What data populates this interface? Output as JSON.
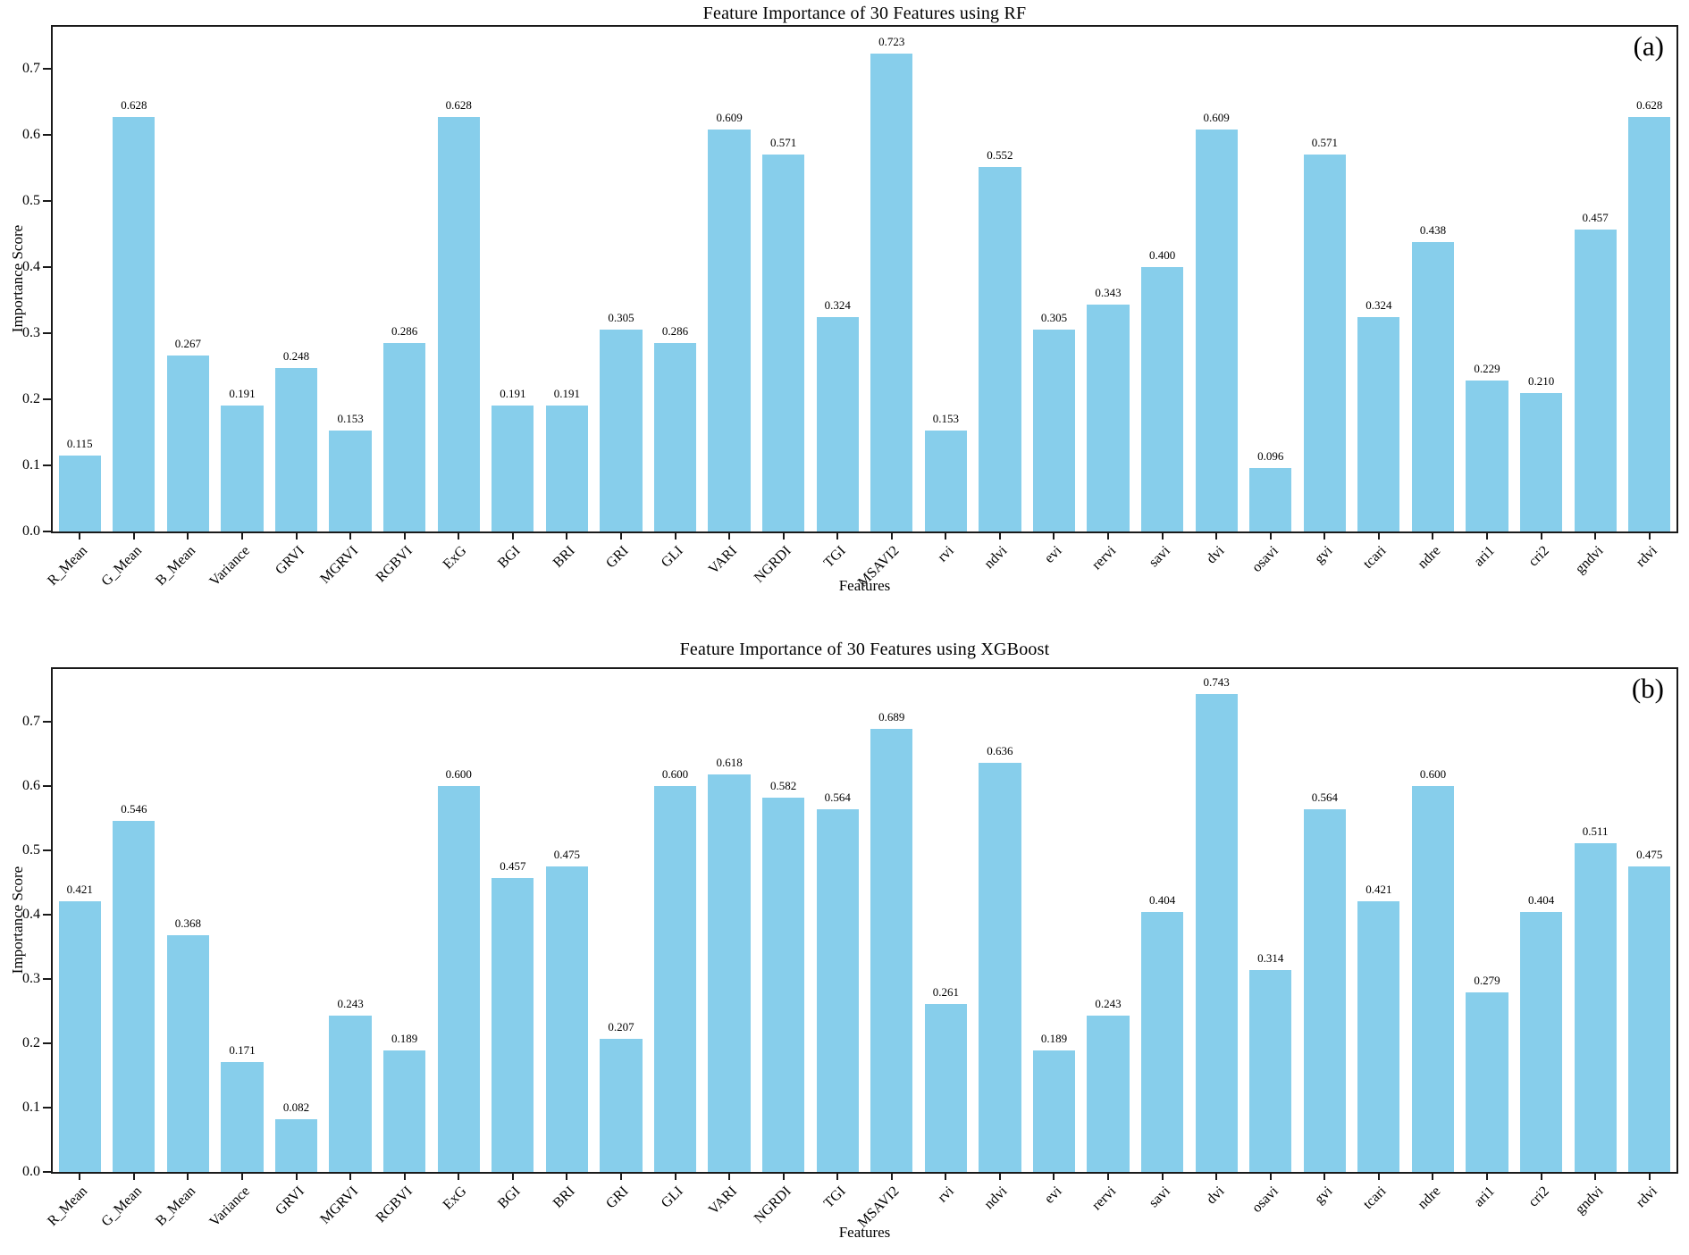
{
  "figure": {
    "background": "#ffffff",
    "text_color": "#000000"
  },
  "chart_data": [
    {
      "type": "bar",
      "panel_label": "(a)",
      "title": "Feature Importance of 30 Features using RF",
      "xlabel": "Features",
      "ylabel": "Importance Score",
      "bar_color": "#87CEEB",
      "ylim": [
        0,
        0.764
      ],
      "yticks": [
        "0.0",
        "0.1",
        "0.2",
        "0.3",
        "0.4",
        "0.5",
        "0.6",
        "0.7"
      ],
      "grid": false,
      "legend": "none",
      "value_labels_shown": true,
      "categories": [
        "R_Mean",
        "G_Mean",
        "B_Mean",
        "Variance",
        "GRVI",
        "MGRVI",
        "RGBVI",
        "ExG",
        "BGI",
        "BRI",
        "GRI",
        "GLI",
        "VARI",
        "NGRDI",
        "TGI",
        "MSAVI2",
        "rvi",
        "ndvi",
        "evi",
        "rervi",
        "savi",
        "dvi",
        "osavi",
        "gvi",
        "tcari",
        "ndre",
        "ari1",
        "cri2",
        "gndvi",
        "rdvi"
      ],
      "values": [
        0.115,
        0.628,
        0.267,
        0.191,
        0.248,
        0.153,
        0.286,
        0.628,
        0.191,
        0.191,
        0.305,
        0.286,
        0.609,
        0.571,
        0.324,
        0.723,
        0.153,
        0.552,
        0.305,
        0.343,
        0.4,
        0.609,
        0.096,
        0.571,
        0.324,
        0.438,
        0.229,
        0.21,
        0.457,
        0.628
      ]
    },
    {
      "type": "bar",
      "panel_label": "(b)",
      "title": "Feature Importance of 30 Features using XGBoost",
      "xlabel": "Features",
      "ylabel": "Importance Score",
      "bar_color": "#87CEEB",
      "ylim": [
        0,
        0.782
      ],
      "yticks": [
        "0.0",
        "0.1",
        "0.2",
        "0.3",
        "0.4",
        "0.5",
        "0.6",
        "0.7"
      ],
      "grid": false,
      "legend": "none",
      "value_labels_shown": true,
      "categories": [
        "R_Mean",
        "G_Mean",
        "B_Mean",
        "Variance",
        "GRVI",
        "MGRVI",
        "RGBVI",
        "ExG",
        "BGI",
        "BRI",
        "GRI",
        "GLI",
        "VARI",
        "NGRDI",
        "TGI",
        "MSAVI2",
        "rvi",
        "ndvi",
        "evi",
        "rervi",
        "savi",
        "dvi",
        "osavi",
        "gvi",
        "tcari",
        "ndre",
        "ari1",
        "cri2",
        "gndvi",
        "rdvi"
      ],
      "values": [
        0.421,
        0.546,
        0.368,
        0.171,
        0.082,
        0.243,
        0.189,
        0.6,
        0.457,
        0.475,
        0.207,
        0.6,
        0.618,
        0.582,
        0.564,
        0.689,
        0.261,
        0.636,
        0.189,
        0.243,
        0.404,
        0.743,
        0.314,
        0.564,
        0.421,
        0.6,
        0.279,
        0.404,
        0.511,
        0.475
      ]
    }
  ]
}
